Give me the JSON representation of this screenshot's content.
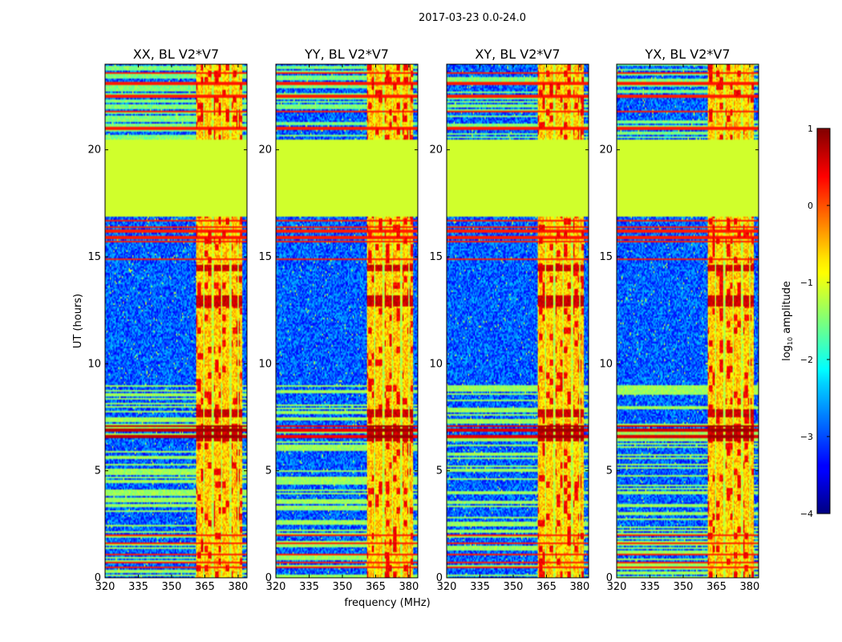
{
  "chart_data": {
    "type": "heatmap",
    "suptitle": "2017-03-23 0.0-24.0",
    "xlabel": "frequency (MHz)",
    "ylabel": "UT (hours)",
    "xlim": [
      320,
      384
    ],
    "ylim": [
      0,
      24
    ],
    "xticks": [
      {
        "value": 320,
        "label": "320"
      },
      {
        "value": 335,
        "label": "335"
      },
      {
        "value": 350,
        "label": "350"
      },
      {
        "value": 365,
        "label": "365"
      },
      {
        "value": 380,
        "label": "380"
      }
    ],
    "yticks": [
      {
        "value": 0,
        "label": "0"
      },
      {
        "value": 5,
        "label": "5"
      },
      {
        "value": 10,
        "label": "10"
      },
      {
        "value": 15,
        "label": "15"
      },
      {
        "value": 20,
        "label": "20"
      }
    ],
    "panels": [
      {
        "id": "xx",
        "title": "XX, BL V2*V7",
        "band_start_mhz": 361,
        "trace_strength": 1.0
      },
      {
        "id": "yy",
        "title": "YY, BL V2*V7",
        "band_start_mhz": 361,
        "trace_strength": 0.4
      },
      {
        "id": "xy",
        "title": "XY, BL V2*V7",
        "band_start_mhz": 361,
        "trace_strength": 0.6
      },
      {
        "id": "yx",
        "title": "YX, BL V2*V7",
        "band_start_mhz": 361,
        "trace_strength": 0.7
      }
    ],
    "colorbar": {
      "label": "log10 amplitude",
      "label_base": "log",
      "label_sub": "10",
      "label_rest": " amplitude",
      "colormap": "jet",
      "vmin": -4,
      "vmax": 1,
      "ticks": [
        {
          "value": 1,
          "label": "1"
        },
        {
          "value": 0,
          "label": "0"
        },
        {
          "value": -1,
          "label": "−1"
        },
        {
          "value": -2,
          "label": "−2"
        },
        {
          "value": -3,
          "label": "−3"
        },
        {
          "value": -4,
          "label": "−4"
        }
      ]
    },
    "data_features": {
      "gap_ut": [
        16.9,
        20.5
      ],
      "gap_value": -1.1,
      "background_level": -2.9,
      "band_level": -0.6,
      "band_bright_level": 0.2,
      "band_gap_columns_mhz": [
        [
          364.2,
          364.8
        ],
        [
          368.2,
          368.8
        ],
        [
          372.2,
          372.8
        ],
        [
          376.2,
          376.8
        ],
        [
          379.5,
          380.1
        ]
      ],
      "band_end_mhz": 382,
      "bright_rows_ut": [
        0.5,
        0.7,
        1.1,
        1.6,
        2.0,
        14.9,
        15.7,
        15.9,
        16.2,
        16.4,
        16.7,
        21.0,
        21.8,
        22.5,
        23.1,
        23.6
      ],
      "strong_rows_ut": [
        [
          6.55,
          6.65
        ],
        [
          6.8,
          7.0
        ],
        [
          7.05,
          7.15
        ]
      ],
      "band_hot_ut": [
        [
          6.4,
          7.1
        ],
        [
          12.7,
          13.2
        ],
        [
          14.3,
          14.6
        ],
        [
          7.5,
          7.9
        ]
      ]
    }
  }
}
